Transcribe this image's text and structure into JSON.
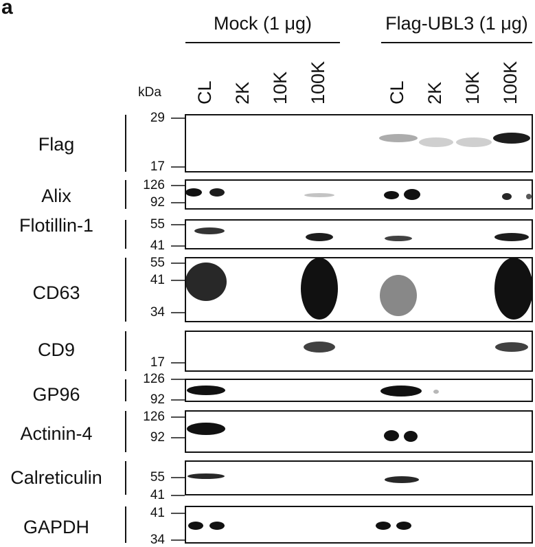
{
  "panel_label": "a",
  "unit": "kDa",
  "groups": [
    {
      "label": "Mock (1 μg)",
      "lanes": [
        "CL",
        "2K",
        "10K",
        "100K"
      ]
    },
    {
      "label": "Flag-UBL3 (1 μg)",
      "lanes": [
        "CL",
        "2K",
        "10K",
        "100K"
      ]
    }
  ],
  "blots": [
    {
      "name": "Flag",
      "markers": [
        "29",
        "17"
      ]
    },
    {
      "name": "Alix",
      "markers": [
        "126",
        "92"
      ]
    },
    {
      "name": "Flotillin-1",
      "markers": [
        "55",
        "41"
      ]
    },
    {
      "name": "CD63",
      "markers": [
        "55",
        "41",
        "34"
      ]
    },
    {
      "name": "CD9",
      "markers": [
        "17"
      ]
    },
    {
      "name": "GP96",
      "markers": [
        "126",
        "92"
      ]
    },
    {
      "name": "Actinin-4",
      "markers": [
        "126",
        "92"
      ]
    },
    {
      "name": "Calreticulin",
      "markers": [
        "55",
        "41"
      ]
    },
    {
      "name": "GAPDH",
      "markers": [
        "41",
        "34"
      ]
    }
  ]
}
